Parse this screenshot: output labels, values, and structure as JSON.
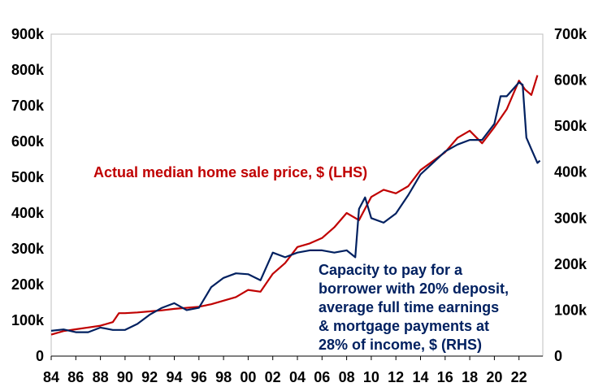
{
  "chart_data": {
    "type": "line",
    "title": "",
    "xlabel": "",
    "ylabel_left": "",
    "ylabel_right": "",
    "xlim": [
      1984,
      2023.7
    ],
    "ylim_left": [
      0,
      900
    ],
    "ylim_right": [
      0,
      700
    ],
    "grid": false,
    "x_tick_labels": [
      "84",
      "86",
      "88",
      "90",
      "92",
      "94",
      "96",
      "98",
      "00",
      "02",
      "04",
      "06",
      "08",
      "10",
      "12",
      "14",
      "16",
      "18",
      "20",
      "22"
    ],
    "x_tick_values": [
      1984,
      1986,
      1988,
      1990,
      1992,
      1994,
      1996,
      1998,
      2000,
      2002,
      2004,
      2006,
      2008,
      2010,
      2012,
      2014,
      2016,
      2018,
      2020,
      2022
    ],
    "y_left_tick_labels": [
      "0",
      "100k",
      "200k",
      "300k",
      "400k",
      "500k",
      "600k",
      "700k",
      "800k",
      "900k"
    ],
    "y_left_tick_values": [
      0,
      100,
      200,
      300,
      400,
      500,
      600,
      700,
      800,
      900
    ],
    "y_right_tick_labels": [
      "0",
      "100k",
      "200k",
      "300k",
      "400k",
      "500k",
      "600k",
      "700k"
    ],
    "y_right_tick_values": [
      0,
      100,
      200,
      300,
      400,
      500,
      600,
      700
    ],
    "series": [
      {
        "name": "Actual median home sale price, $ (LHS)",
        "axis": "left",
        "color": "#c00000",
        "x": [
          1984,
          1985,
          1986,
          1987,
          1988,
          1989,
          1989.5,
          1990,
          1991,
          1992,
          1993,
          1994,
          1995,
          1996,
          1997,
          1998,
          1999,
          2000,
          2001,
          2002,
          2003,
          2004,
          2005,
          2006,
          2007,
          2008,
          2009,
          2010,
          2011,
          2012,
          2013,
          2014,
          2015,
          2016,
          2017,
          2018,
          2019,
          2020,
          2021,
          2022,
          2022.5,
          2023,
          2023.5
        ],
        "values": [
          60,
          70,
          75,
          80,
          85,
          95,
          120,
          120,
          122,
          125,
          128,
          132,
          135,
          138,
          145,
          155,
          165,
          185,
          180,
          230,
          260,
          305,
          315,
          330,
          360,
          400,
          380,
          445,
          465,
          455,
          475,
          520,
          545,
          570,
          610,
          630,
          595,
          640,
          690,
          770,
          745,
          730,
          785
        ]
      },
      {
        "name": "Capacity to pay for a borrower with 20% deposit, average full time earnings & mortgage payments at 28% of income, $ (RHS)",
        "axis": "right",
        "color": "#002060",
        "x": [
          1984,
          1985,
          1986,
          1987,
          1988,
          1989,
          1990,
          1991,
          1992,
          1993,
          1994,
          1995,
          1996,
          1997,
          1998,
          1999,
          2000,
          2001,
          2002,
          2003,
          2004,
          2005,
          2006,
          2007,
          2008,
          2008.7,
          2009,
          2009.5,
          2010,
          2011,
          2012,
          2013,
          2014,
          2015,
          2016,
          2017,
          2018,
          2019,
          2020,
          2020.5,
          2021,
          2022,
          2022.3,
          2022.6,
          2023,
          2023.5,
          2023.7
        ],
        "values": [
          55,
          58,
          52,
          52,
          62,
          57,
          57,
          70,
          90,
          105,
          115,
          100,
          105,
          150,
          170,
          180,
          178,
          165,
          225,
          215,
          225,
          230,
          230,
          225,
          230,
          215,
          320,
          345,
          300,
          290,
          310,
          350,
          395,
          420,
          445,
          460,
          470,
          470,
          505,
          565,
          565,
          595,
          590,
          475,
          450,
          420,
          425
        ]
      }
    ],
    "annotations": [
      {
        "text": "Actual median home sale price, $ (LHS)",
        "color": "#c00000"
      },
      {
        "lines": [
          "Capacity to pay for a",
          "borrower with 20% deposit,",
          "average full time earnings",
          "& mortgage payments at",
          "28% of income, $ (RHS)"
        ],
        "color": "#002060"
      }
    ]
  }
}
